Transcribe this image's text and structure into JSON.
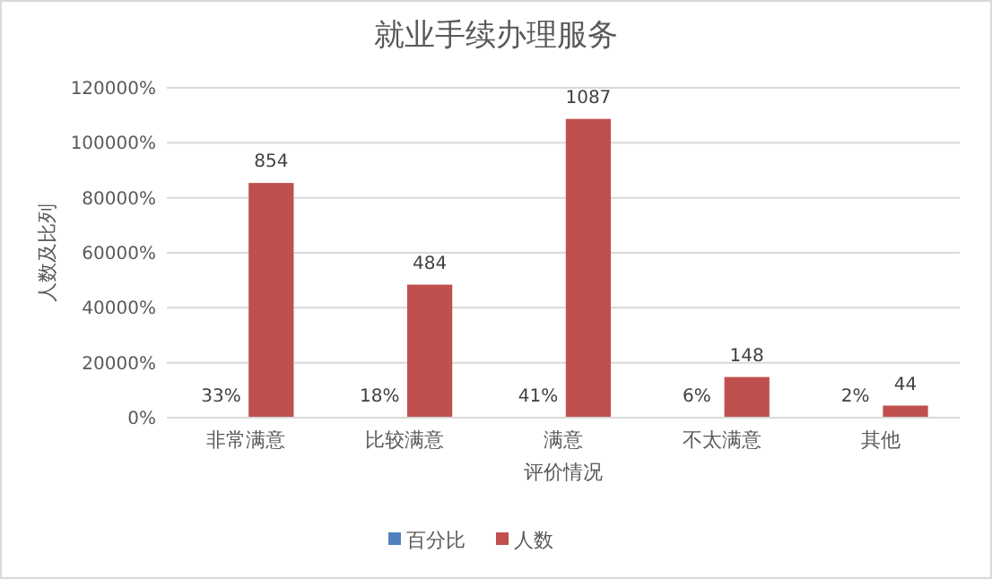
{
  "chart_data": {
    "type": "bar",
    "title": "就业手续办理服务",
    "xlabel": "评价情况",
    "ylabel": "人数及比列",
    "categories": [
      "非常满意",
      "比较满意",
      "满意",
      "不太满意",
      "其他"
    ],
    "series": [
      {
        "name": "百分比",
        "color": "#4f81bd",
        "values": [
          0.33,
          0.18,
          0.41,
          0.06,
          0.02
        ],
        "value_labels": [
          "33%",
          "18%",
          "41%",
          "6%",
          "2%"
        ]
      },
      {
        "name": "人数",
        "color": "#c0504d",
        "values": [
          854,
          484,
          1087,
          148,
          44
        ],
        "value_labels": [
          "854",
          "484",
          "1087",
          "148",
          "44"
        ]
      }
    ],
    "ylim": [
      0,
      1200
    ],
    "yticks": [
      {
        "value": 0,
        "label": "0%"
      },
      {
        "value": 200,
        "label": "20000%"
      },
      {
        "value": 400,
        "label": "40000%"
      },
      {
        "value": 600,
        "label": "60000%"
      },
      {
        "value": 800,
        "label": "80000%"
      },
      {
        "value": 1000,
        "label": "100000%"
      },
      {
        "value": 1200,
        "label": "120000%"
      }
    ],
    "grid": "y",
    "legend": "bottom"
  }
}
